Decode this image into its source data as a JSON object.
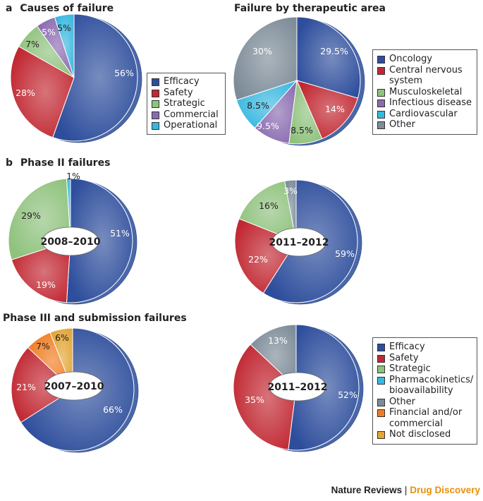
{
  "colors": {
    "efficacy": "#2e4e9c",
    "safety": "#c12832",
    "strategic": "#8fc27d",
    "commercial": "#8a6bb0",
    "operational": "#38b8e0",
    "other": "#7d8c98",
    "financial": "#ef7d23",
    "not_disclosed": "#e3a534",
    "footer_accent": "#e8900c"
  },
  "panel_a": {
    "letter": "a",
    "heading": "Causes of failure",
    "heading2": "Failure by therapeutic area",
    "legend1": [
      "Efficacy",
      "Safety",
      "Strategic",
      "Commercial",
      "Operational"
    ],
    "legend2": [
      "Oncology",
      "Central nervous system",
      "Musculoskeletal",
      "Infectious disease",
      "Cardiovascular",
      "Other"
    ]
  },
  "panel_b": {
    "letter": "b",
    "heading": "Phase II failures",
    "heading2": "Phase III and submission failures",
    "legend": [
      "Efficacy",
      "Safety",
      "Strategic",
      "Pharmacokinetics/ bioavailability",
      "Other",
      "Financial and/or commercial",
      "Not disclosed"
    ]
  },
  "footer": {
    "journal": "Nature Reviews",
    "separator": "|",
    "section": "Drug Discovery"
  },
  "chart_data": [
    {
      "id": "causes",
      "type": "pie",
      "title": "Causes of failure",
      "categories": [
        "Efficacy",
        "Safety",
        "Strategic",
        "Commercial",
        "Operational"
      ],
      "values": [
        56,
        28,
        7,
        5,
        5
      ],
      "labels": [
        "56%",
        "28%",
        "7%",
        "5%",
        "5%"
      ]
    },
    {
      "id": "therapeutic",
      "type": "pie",
      "title": "Failure by therapeutic area",
      "categories": [
        "Oncology",
        "Central nervous system",
        "Musculoskeletal",
        "Infectious disease",
        "Cardiovascular",
        "Other"
      ],
      "values": [
        29.5,
        14,
        8.5,
        9.5,
        8.5,
        30
      ],
      "labels": [
        "29.5%",
        "14%",
        "8.5%",
        "9.5%",
        "8.5%",
        "30%"
      ]
    },
    {
      "id": "phase2_2008",
      "type": "pie",
      "title": "Phase II failures",
      "center_label": "2008–2010",
      "categories": [
        "Efficacy",
        "Safety",
        "Strategic",
        "Pharmacokinetics/bioavailability"
      ],
      "values": [
        51,
        19,
        29,
        1
      ],
      "labels": [
        "51%",
        "19%",
        "29%",
        "1%"
      ]
    },
    {
      "id": "phase2_2011",
      "type": "pie",
      "title": "Phase II failures",
      "center_label": "2011–2012",
      "categories": [
        "Efficacy",
        "Safety",
        "Strategic",
        "Other"
      ],
      "values": [
        59,
        22,
        16,
        3
      ],
      "labels": [
        "59%",
        "22%",
        "16%",
        "3%"
      ]
    },
    {
      "id": "phase3_2007",
      "type": "pie",
      "title": "Phase III and submission failures",
      "center_label": "2007–2010",
      "categories": [
        "Efficacy",
        "Safety",
        "Financial and/or commercial",
        "Not disclosed"
      ],
      "values": [
        66,
        21,
        7,
        6
      ],
      "labels": [
        "66%",
        "21%",
        "7%",
        "6%"
      ]
    },
    {
      "id": "phase3_2011",
      "type": "pie",
      "title": "Phase III and submission failures",
      "center_label": "2011–2012",
      "categories": [
        "Efficacy",
        "Safety",
        "Other"
      ],
      "values": [
        52,
        35,
        13
      ],
      "labels": [
        "52%",
        "35%",
        "13%"
      ]
    }
  ]
}
